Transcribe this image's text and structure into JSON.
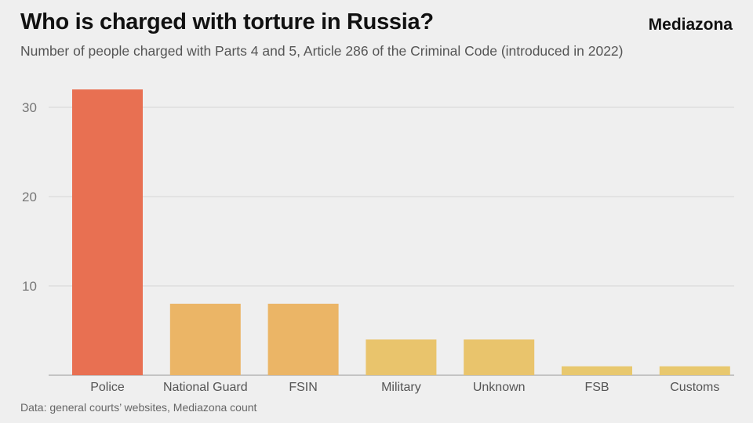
{
  "header": {
    "title": "Who is charged with torture in Russia?",
    "brand": "Mediazona",
    "subtitle": "Number of people charged with Parts 4 and 5, Article 286 of the Criminal Code (introduced in 2022)"
  },
  "footer": {
    "source": "Data: general courts’ websites, Mediazona count"
  },
  "colors": {
    "highlight": "#e87052",
    "bars": [
      "#e87052",
      "#ebb566",
      "#ebb566",
      "#e9c46c",
      "#e9c46c",
      "#e8c86e",
      "#e8c86e"
    ],
    "grid": "#d5d5d5",
    "axis": "#999999"
  },
  "chart_data": {
    "type": "bar",
    "title": "Who is charged with torture in Russia?",
    "subtitle": "Number of people charged with Parts 4 and 5, Article 286 of the Criminal Code (introduced in 2022)",
    "categories": [
      "Police",
      "National Guard",
      "FSIN",
      "Military",
      "Unknown",
      "FSB",
      "Customs"
    ],
    "values": [
      32,
      8,
      8,
      4,
      4,
      1,
      1
    ],
    "yticks": [
      10,
      20,
      30
    ],
    "ylim": [
      0,
      34
    ],
    "xlabel": "",
    "ylabel": "",
    "grid": true,
    "legend": "none"
  }
}
